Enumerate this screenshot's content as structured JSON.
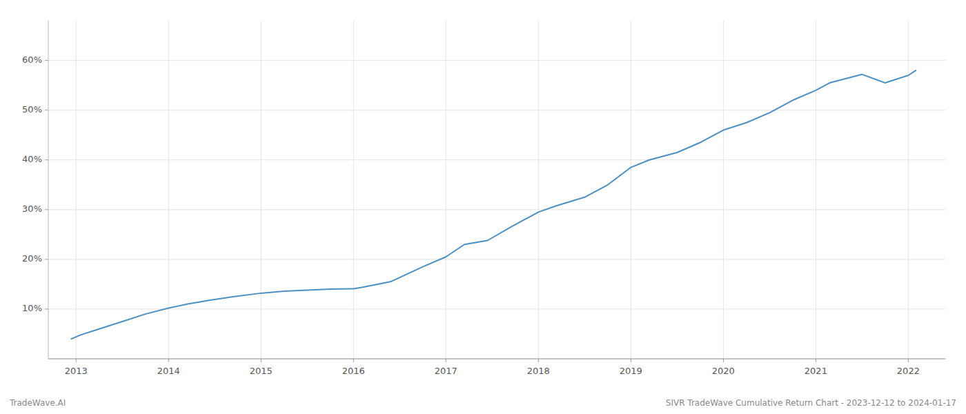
{
  "chart_data": {
    "type": "line",
    "title": "SIVR TradeWave Cumulative Return Chart - 2023-12-12 to 2024-01-17",
    "annotations": [
      "TradeWave.AI"
    ],
    "x": [
      2012.95,
      2013.05,
      2013.25,
      2013.5,
      2013.75,
      2014.0,
      2014.2,
      2014.45,
      2014.7,
      2015.0,
      2015.25,
      2015.5,
      2015.75,
      2016.0,
      2016.1,
      2016.4,
      2016.75,
      2017.0,
      2017.2,
      2017.45,
      2017.7,
      2018.0,
      2018.2,
      2018.5,
      2018.75,
      2019.0,
      2019.2,
      2019.5,
      2019.75,
      2020.0,
      2020.25,
      2020.5,
      2020.75,
      2021.0,
      2021.15,
      2021.5,
      2021.75,
      2022.0,
      2022.08
    ],
    "values": [
      4.0,
      4.8,
      6.0,
      7.5,
      9.0,
      10.2,
      11.0,
      11.8,
      12.5,
      13.2,
      13.6,
      13.8,
      14.0,
      14.1,
      14.4,
      15.5,
      18.5,
      20.5,
      23.0,
      23.8,
      26.5,
      29.5,
      30.8,
      32.5,
      35.0,
      38.5,
      40.0,
      41.5,
      43.5,
      46.0,
      47.5,
      49.5,
      52.0,
      54.0,
      55.5,
      57.2,
      55.5,
      57.0,
      58.0
    ],
    "color": "#4a90c4",
    "xlim": [
      2012.7,
      2022.4
    ],
    "xticks": [
      2013,
      2014,
      2015,
      2016,
      2017,
      2018,
      2019,
      2020,
      2021,
      2022
    ],
    "ylim": [
      0,
      68
    ],
    "yticks": [
      {
        "value": 10,
        "label": "10%"
      },
      {
        "value": 20,
        "label": "20%"
      },
      {
        "value": 30,
        "label": "30%"
      },
      {
        "value": 40,
        "label": "40%"
      },
      {
        "value": 50,
        "label": "50%"
      },
      {
        "value": 60,
        "label": "60%"
      }
    ],
    "grid": true
  }
}
